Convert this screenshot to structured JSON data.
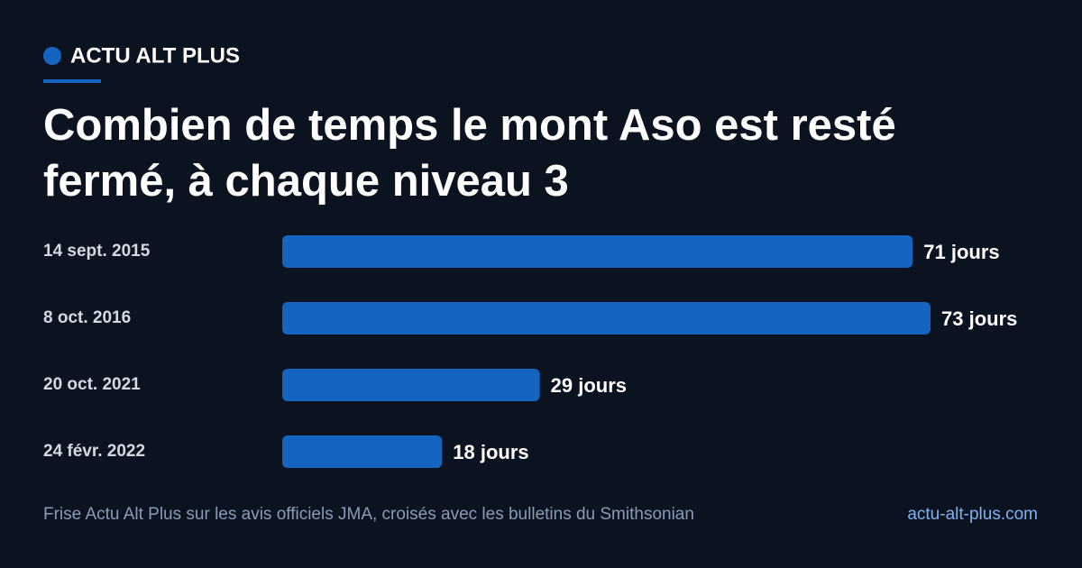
{
  "brand": "ACTU ALT PLUS",
  "chart_data": {
    "type": "bar",
    "orientation": "horizontal",
    "title": "Combien de temps le mont Aso est resté fermé, à chaque niveau 3",
    "categories": [
      "14 sept. 2015",
      "8 oct. 2016",
      "20 oct. 2021",
      "24 févr. 2022"
    ],
    "values": [
      71,
      73,
      29,
      18
    ],
    "value_labels": [
      "71 jours",
      "73 jours",
      "29 jours",
      "18 jours"
    ],
    "color": "#1565c0"
  },
  "footer": {
    "source": "Frise Actu Alt Plus sur les avis officiels JMA, croisés avec les bulletins du Smithsonian",
    "site": "actu-alt-plus.com"
  }
}
